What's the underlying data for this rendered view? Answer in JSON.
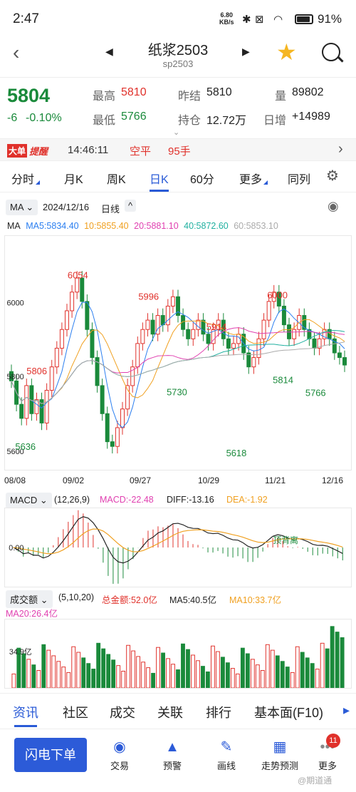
{
  "status_bar": {
    "time": "2:47",
    "net_speed": "6.80",
    "net_unit": "KB/s",
    "battery": "91%"
  },
  "nav": {
    "title": "纸浆2503",
    "code": "sp2503"
  },
  "quote": {
    "price": "5804",
    "change": "-6",
    "change_pct": "-0.10%",
    "high_label": "最高",
    "high": "5810",
    "low_label": "最低",
    "low": "5766",
    "prev_settle_label": "昨结",
    "prev_settle": "5810",
    "oi_label": "持仓",
    "oi": "12.72万",
    "vol_label": "量",
    "vol": "89802",
    "daily_inc_label": "日增",
    "daily_inc": "+14989"
  },
  "ticker": {
    "badge": "大单",
    "badge2": "提醒",
    "time": "14:46:11",
    "action": "空平",
    "qty": "95手"
  },
  "tabs": [
    "分时",
    "月K",
    "周K",
    "日K",
    "60分",
    "更多",
    "同列"
  ],
  "kline_bar": {
    "indicator": "MA",
    "date": "2024/12/16",
    "period": "日线"
  },
  "ma_line": {
    "label": "MA",
    "ma5": "MA5:5834.40",
    "ma10": "10:5855.40",
    "ma20": "20:5881.10",
    "ma40": "40:5872.60",
    "ma60": "60:5853.10"
  },
  "colors": {
    "ma5": "#2a7ef0",
    "ma10": "#f0a020",
    "ma20": "#e040b0",
    "ma40": "#20b0a0",
    "ma60": "#aaaaaa",
    "up": "#e0312b",
    "down": "#1a8a3b"
  },
  "chart_data": {
    "type": "candlestick",
    "y_ticks": [
      "6000",
      "5800",
      "5600"
    ],
    "ylim": [
      5580,
      6080
    ],
    "x_ticks": [
      "08/08",
      "09/02",
      "09/27",
      "10/29",
      "11/21",
      "12/16"
    ],
    "annotations": {
      "p6054": "6054",
      "p5996": "5996",
      "p5914": "5914",
      "p6000": "6000",
      "p5806": "5806",
      "p5636": "5636",
      "p5730": "5730",
      "p5618": "5618",
      "p5814": "5814",
      "p5766": "5766"
    },
    "closes": [
      5770,
      5720,
      5690,
      5760,
      5700,
      5730,
      5680,
      5750,
      5800,
      5840,
      5880,
      5920,
      5960,
      5990,
      5940,
      5880,
      5820,
      5760,
      5700,
      5640,
      5630,
      5670,
      5710,
      5760,
      5800,
      5850,
      5880,
      5900,
      5870,
      5910,
      5890,
      5930,
      5950,
      5910,
      5880,
      5860,
      5880,
      5900,
      5870,
      5850,
      5880,
      5900,
      5860,
      5840,
      5850,
      5870,
      5830,
      5800,
      5820,
      5860,
      5900,
      5940,
      5960,
      5930,
      5890,
      5860,
      5880,
      5910,
      5880,
      5860,
      5840,
      5860,
      5880,
      5860,
      5830,
      5820,
      5804
    ]
  },
  "macd_bar": {
    "indicator": "MACD",
    "params": "(12,26,9)",
    "macd": "MACD:-22.48",
    "diff": "DIFF:-13.16",
    "dea": "DEA:-1.92",
    "zero": "0.00",
    "annotation": "顶背离"
  },
  "vol_bar": {
    "indicator": "成交额",
    "params": "(5,10,20)",
    "total": "总金额:52.0亿",
    "ma5": "MA5:40.5亿",
    "ma10": "MA10:33.7亿",
    "ma20": "MA20:26.4亿",
    "tick": "34.9亿"
  },
  "bottom_tabs": [
    "资讯",
    "社区",
    "成交",
    "关联",
    "排行",
    "基本面(F10)"
  ],
  "footer": {
    "flash_order": "闪电下单",
    "items": [
      "交易",
      "预警",
      "画线",
      "走势预测",
      "更多"
    ],
    "badge": "11",
    "watermark": "@期道通"
  }
}
